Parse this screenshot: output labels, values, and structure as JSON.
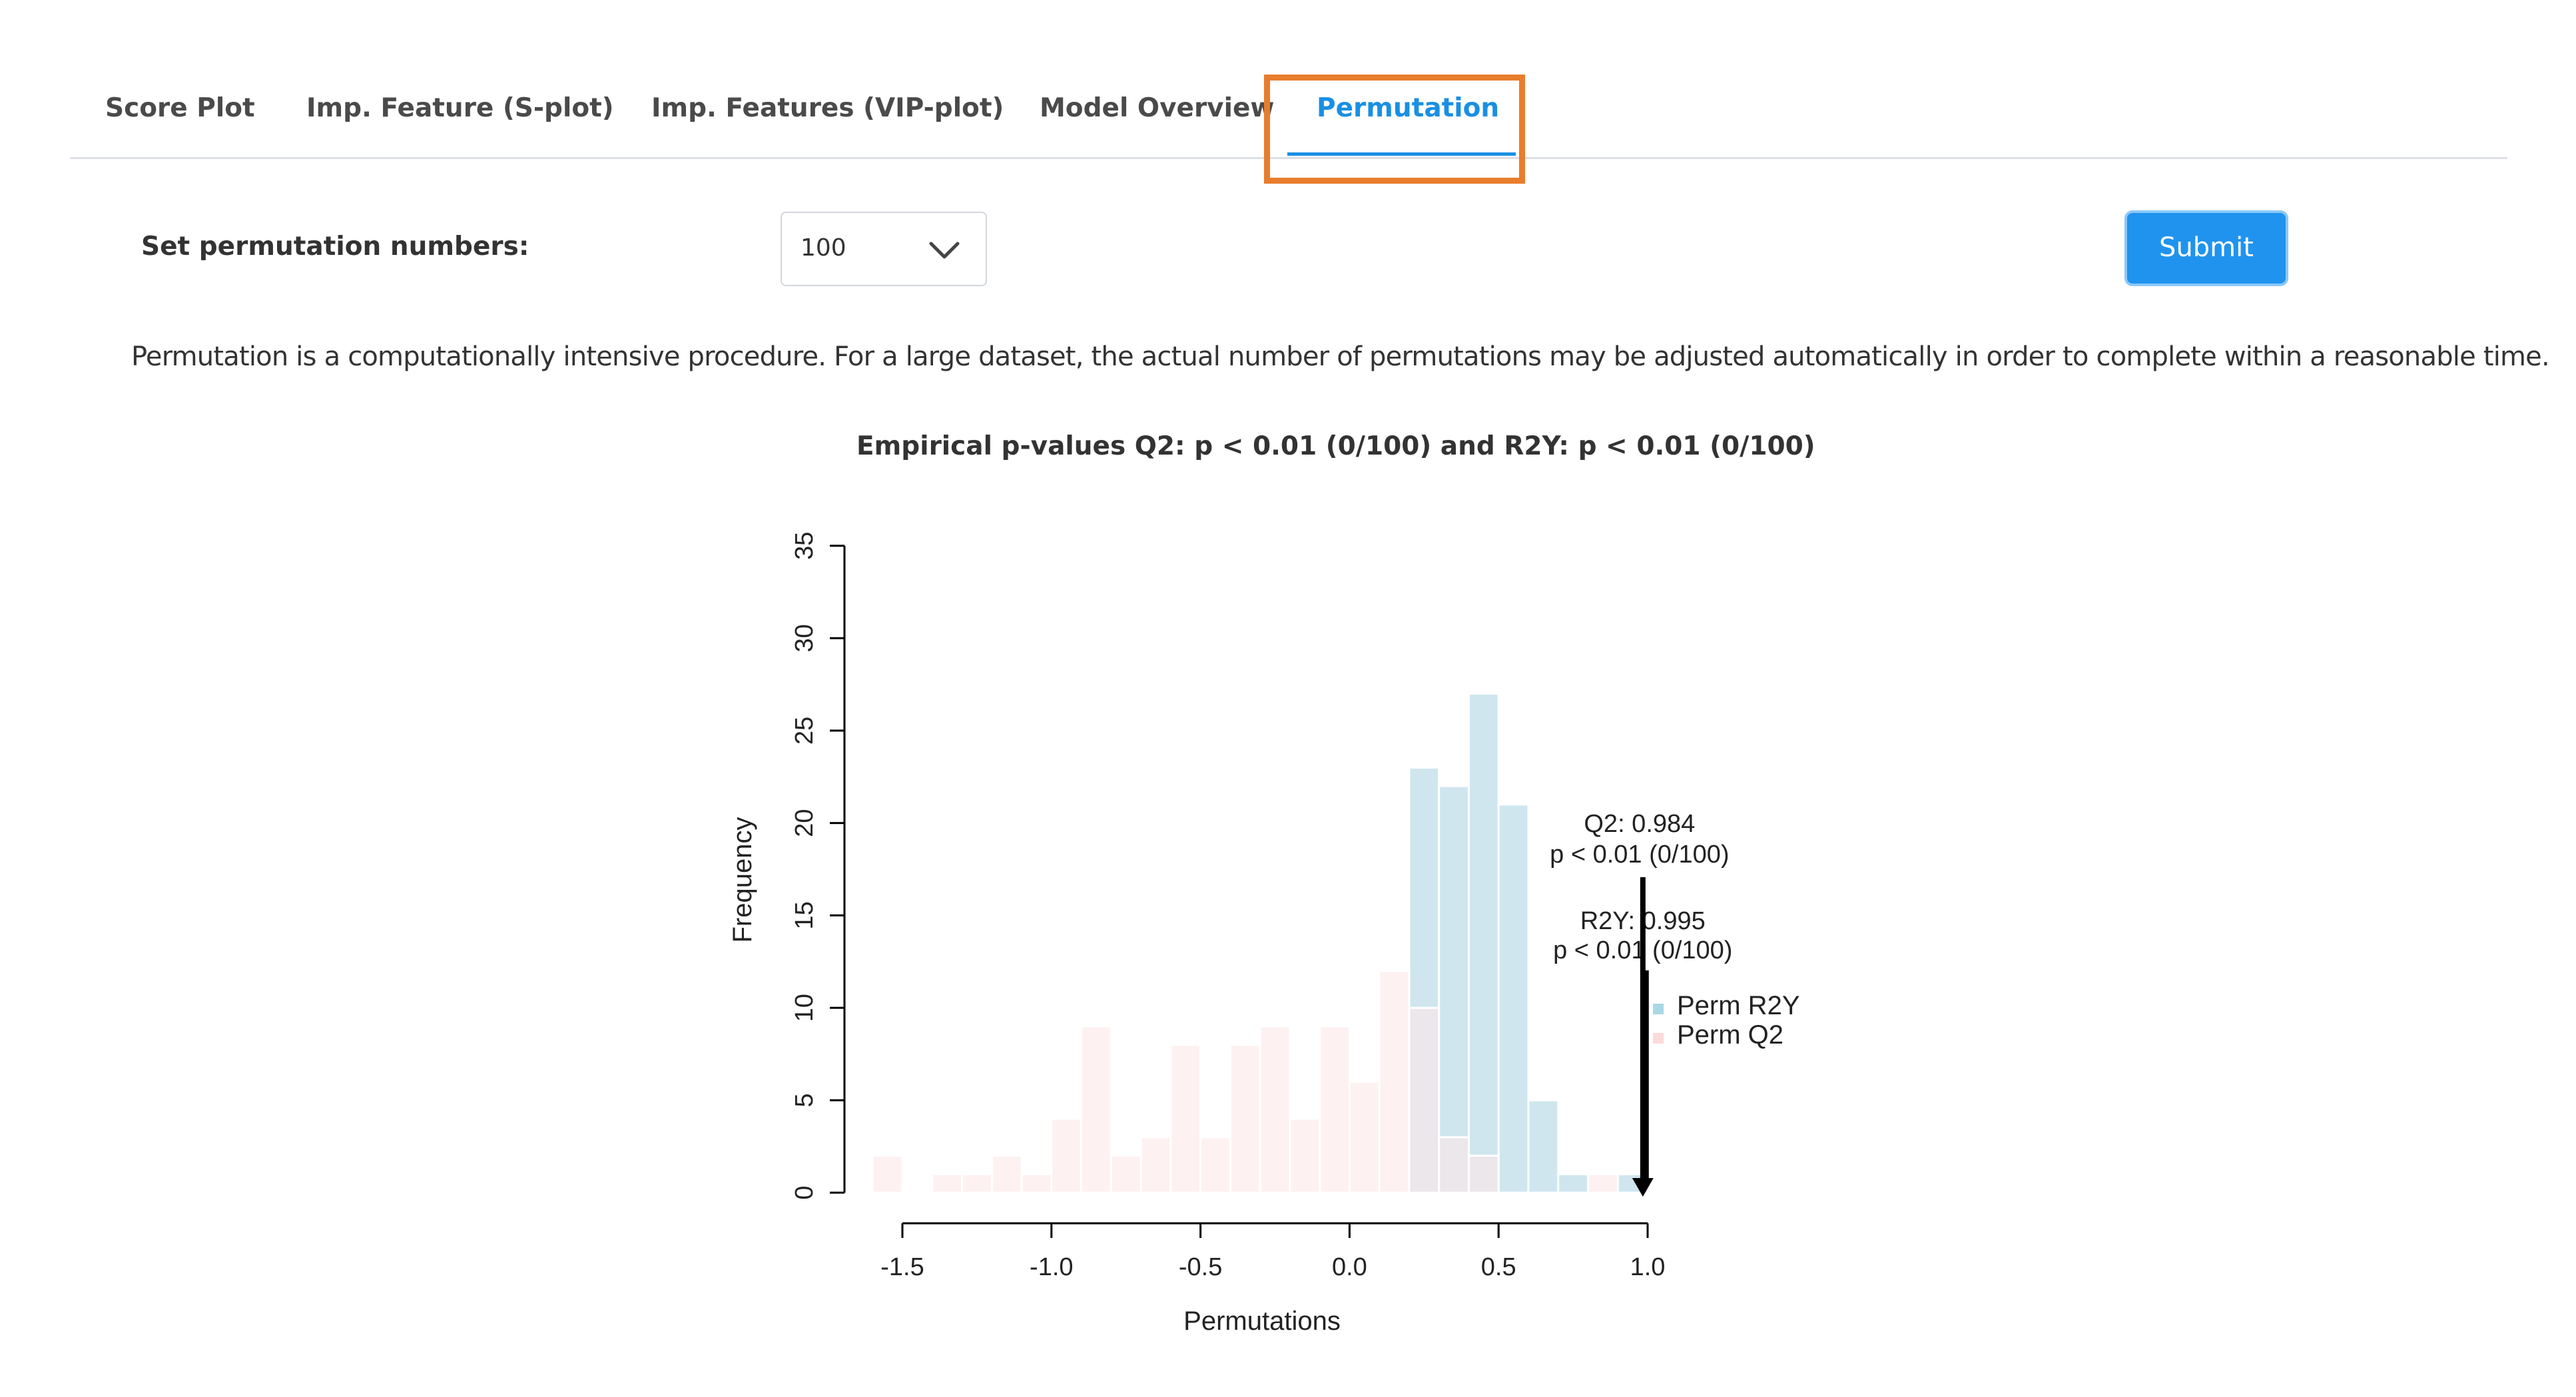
{
  "tabs": [
    {
      "label": "Score Plot",
      "active": false
    },
    {
      "label": "Imp. Feature (S-plot)",
      "active": false
    },
    {
      "label": "Imp. Features (VIP-plot)",
      "active": false
    },
    {
      "label": "Model Overview",
      "active": false
    },
    {
      "label": "Permutation",
      "active": true
    }
  ],
  "form": {
    "label": "Set permutation numbers:",
    "select_value": "100",
    "submit_label": "Submit"
  },
  "note": "Permutation is a computationally intensive procedure. For a large dataset, the actual number of permutations may be adjusted automatically in order to complete within a reasonable time.",
  "chart_title": "Empirical p-values Q2: p < 0.01 (0/100) and R2Y: p < 0.01 (0/100)",
  "colors": {
    "accent": "#1a8fe3",
    "highlight": "#e87d2d",
    "perm_r2y": "#cfe6ef",
    "perm_q2": "#fde7e7"
  },
  "chart_data": {
    "type": "bar",
    "xlabel": "Permutations",
    "ylabel": "Frequency",
    "xlim": [
      -1.5,
      1.0
    ],
    "ylim": [
      0,
      35
    ],
    "x_ticks": [
      "-1.5",
      "-1.0",
      "-0.5",
      "0.0",
      "0.5",
      "1.0"
    ],
    "y_ticks": [
      "0",
      "5",
      "10",
      "15",
      "20",
      "25",
      "30",
      "35"
    ],
    "bin_width": 0.1,
    "series": [
      {
        "name": "Perm R2Y",
        "bins": [
          {
            "x0": 0.2,
            "value": 23
          },
          {
            "x0": 0.3,
            "value": 22
          },
          {
            "x0": 0.4,
            "value": 27
          },
          {
            "x0": 0.5,
            "value": 21
          },
          {
            "x0": 0.6,
            "value": 5
          },
          {
            "x0": 0.7,
            "value": 1
          },
          {
            "x0": 0.9,
            "value": 1
          }
        ]
      },
      {
        "name": "Perm Q2",
        "bins": [
          {
            "x0": -1.6,
            "value": 2
          },
          {
            "x0": -1.4,
            "value": 1
          },
          {
            "x0": -1.3,
            "value": 1
          },
          {
            "x0": -1.2,
            "value": 2
          },
          {
            "x0": -1.1,
            "value": 1
          },
          {
            "x0": -1.0,
            "value": 4
          },
          {
            "x0": -0.9,
            "value": 9
          },
          {
            "x0": -0.8,
            "value": 2
          },
          {
            "x0": -0.7,
            "value": 3
          },
          {
            "x0": -0.6,
            "value": 8
          },
          {
            "x0": -0.5,
            "value": 3
          },
          {
            "x0": -0.4,
            "value": 8
          },
          {
            "x0": -0.3,
            "value": 9
          },
          {
            "x0": -0.2,
            "value": 4
          },
          {
            "x0": -0.1,
            "value": 9
          },
          {
            "x0": 0.0,
            "value": 6
          },
          {
            "x0": 0.1,
            "value": 12
          },
          {
            "x0": 0.2,
            "value": 10
          },
          {
            "x0": 0.3,
            "value": 3
          },
          {
            "x0": 0.4,
            "value": 2
          },
          {
            "x0": 0.8,
            "value": 1
          }
        ]
      }
    ],
    "annotations": [
      {
        "lines": [
          "Q2: 0.984",
          "p < 0.01 (0/100)"
        ],
        "x": 0.984
      },
      {
        "lines": [
          "R2Y: 0.995",
          "p < 0.01 (0/100)"
        ],
        "x": 0.995
      }
    ],
    "legend": {
      "entries": [
        "Perm R2Y",
        "Perm Q2"
      ],
      "placement": "right"
    }
  }
}
